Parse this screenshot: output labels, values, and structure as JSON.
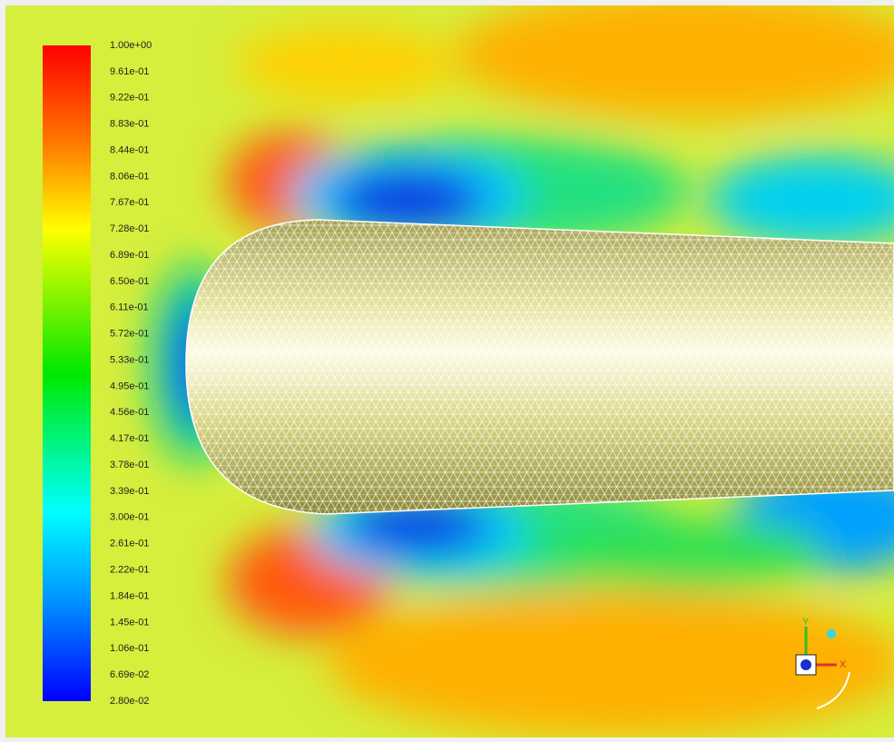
{
  "colorbar": {
    "labels": [
      "1.00e+00",
      "9.61e-01",
      "9.22e-01",
      "8.83e-01",
      "8.44e-01",
      "8.06e-01",
      "7.67e-01",
      "7.28e-01",
      "6.89e-01",
      "6.50e-01",
      "6.11e-01",
      "5.72e-01",
      "5.33e-01",
      "4.95e-01",
      "4.56e-01",
      "4.17e-01",
      "3.78e-01",
      "3.39e-01",
      "3.00e-01",
      "2.61e-01",
      "2.22e-01",
      "1.84e-01",
      "1.45e-01",
      "1.06e-01",
      "6.69e-02",
      "2.80e-02"
    ]
  },
  "triad": {
    "y_label": "Y",
    "x_label": "X"
  }
}
